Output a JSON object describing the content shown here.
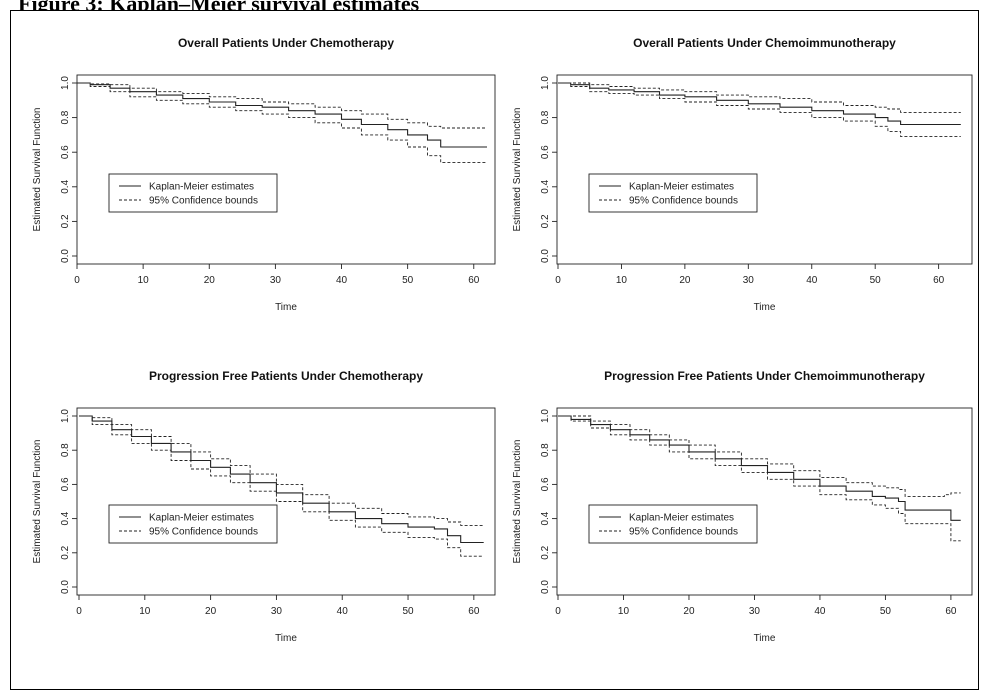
{
  "figure": {
    "heading_text": "Figure 3: Kaplan–Meier survival estimates"
  },
  "chart_data": [
    {
      "type": "line",
      "title": "Overall Patients Under Chemotherapy",
      "xlabel": "Time",
      "ylabel": "Estimated Survival Function",
      "xlim": [
        0,
        62
      ],
      "ylim": [
        0,
        1
      ],
      "xticks": [
        "0",
        "10",
        "20",
        "30",
        "40",
        "50",
        "60"
      ],
      "yticks": [
        "0.0",
        "0.2",
        "0.4",
        "0.6",
        "0.8",
        "1.0"
      ],
      "legend_position": "bottom-left",
      "series": [
        {
          "name": "Kaplan-Meier estimates",
          "style": "solid",
          "x": [
            0,
            2,
            5,
            8,
            12,
            16,
            20,
            24,
            28,
            32,
            36,
            40,
            43,
            47,
            50,
            53,
            55,
            62
          ],
          "y": [
            1.0,
            0.99,
            0.97,
            0.95,
            0.93,
            0.91,
            0.89,
            0.87,
            0.86,
            0.84,
            0.82,
            0.79,
            0.76,
            0.73,
            0.7,
            0.67,
            0.63,
            0.63
          ]
        },
        {
          "name": "95% Confidence bounds",
          "style": "dashed",
          "x": [
            0,
            2,
            5,
            8,
            12,
            16,
            20,
            24,
            28,
            32,
            36,
            40,
            43,
            47,
            50,
            53,
            55,
            62
          ],
          "y": [
            1.0,
            0.995,
            0.99,
            0.97,
            0.95,
            0.94,
            0.92,
            0.91,
            0.89,
            0.88,
            0.86,
            0.84,
            0.82,
            0.79,
            0.77,
            0.75,
            0.74,
            0.74
          ]
        },
        {
          "name": "",
          "style": "dashed",
          "x": [
            0,
            2,
            5,
            8,
            12,
            16,
            20,
            24,
            28,
            32,
            36,
            40,
            43,
            47,
            50,
            53,
            55,
            62
          ],
          "y": [
            1.0,
            0.98,
            0.95,
            0.92,
            0.9,
            0.88,
            0.86,
            0.84,
            0.82,
            0.8,
            0.77,
            0.74,
            0.7,
            0.67,
            0.63,
            0.58,
            0.54,
            0.54
          ]
        }
      ]
    },
    {
      "type": "line",
      "title": "Overall Patients Under Chemoimmunotherapy",
      "xlabel": "Time",
      "ylabel": "Estimated Survival Function",
      "xlim": [
        0,
        64
      ],
      "ylim": [
        0,
        1
      ],
      "xticks": [
        "0",
        "10",
        "20",
        "30",
        "40",
        "50",
        "60"
      ],
      "yticks": [
        "0.0",
        "0.2",
        "0.4",
        "0.6",
        "0.8",
        "1.0"
      ],
      "legend_position": "bottom-left",
      "series": [
        {
          "name": "Kaplan-Meier estimates",
          "style": "solid",
          "x": [
            0,
            2,
            5,
            8,
            12,
            16,
            20,
            25,
            30,
            35,
            40,
            45,
            50,
            52,
            54,
            63.5
          ],
          "y": [
            1.0,
            0.99,
            0.97,
            0.96,
            0.95,
            0.93,
            0.92,
            0.9,
            0.88,
            0.86,
            0.84,
            0.82,
            0.8,
            0.78,
            0.76,
            0.76
          ]
        },
        {
          "name": "95% Confidence bounds",
          "style": "dashed",
          "x": [
            0,
            2,
            5,
            8,
            12,
            16,
            20,
            25,
            30,
            35,
            40,
            45,
            50,
            52,
            54,
            63.5
          ],
          "y": [
            1.0,
            1.0,
            0.99,
            0.98,
            0.97,
            0.96,
            0.95,
            0.93,
            0.92,
            0.91,
            0.89,
            0.87,
            0.86,
            0.85,
            0.83,
            0.83
          ]
        },
        {
          "name": "",
          "style": "dashed",
          "x": [
            0,
            2,
            5,
            8,
            12,
            16,
            20,
            25,
            30,
            35,
            40,
            45,
            50,
            52,
            54,
            63.5
          ],
          "y": [
            1.0,
            0.98,
            0.95,
            0.94,
            0.93,
            0.91,
            0.89,
            0.87,
            0.85,
            0.83,
            0.8,
            0.78,
            0.75,
            0.72,
            0.69,
            0.69
          ]
        }
      ]
    },
    {
      "type": "line",
      "title": "Progression Free Patients Under Chemotherapy",
      "xlabel": "Time",
      "ylabel": "Estimated Survival Function",
      "xlim": [
        0,
        62
      ],
      "ylim": [
        0,
        1
      ],
      "xticks": [
        "0",
        "10",
        "20",
        "30",
        "40",
        "50",
        "60"
      ],
      "yticks": [
        "0.0",
        "0.2",
        "0.4",
        "0.6",
        "0.8",
        "1.0"
      ],
      "legend_position": "bottom-left",
      "series": [
        {
          "name": "Kaplan-Meier estimates",
          "style": "solid",
          "x": [
            0,
            2,
            5,
            8,
            11,
            14,
            17,
            20,
            23,
            26,
            30,
            34,
            38,
            42,
            46,
            50,
            54,
            56,
            58,
            61.5
          ],
          "y": [
            1.0,
            0.97,
            0.92,
            0.88,
            0.84,
            0.79,
            0.74,
            0.7,
            0.66,
            0.61,
            0.55,
            0.49,
            0.44,
            0.4,
            0.37,
            0.35,
            0.34,
            0.3,
            0.26,
            0.26
          ]
        },
        {
          "name": "95% Confidence bounds",
          "style": "dashed",
          "x": [
            0,
            2,
            5,
            8,
            11,
            14,
            17,
            20,
            23,
            26,
            30,
            34,
            38,
            42,
            46,
            50,
            54,
            56,
            58,
            61.5
          ],
          "y": [
            1.0,
            0.99,
            0.95,
            0.92,
            0.88,
            0.84,
            0.79,
            0.75,
            0.71,
            0.66,
            0.6,
            0.54,
            0.49,
            0.46,
            0.43,
            0.41,
            0.4,
            0.38,
            0.36,
            0.36
          ]
        },
        {
          "name": "",
          "style": "dashed",
          "x": [
            0,
            2,
            5,
            8,
            11,
            14,
            17,
            20,
            23,
            26,
            30,
            34,
            38,
            42,
            46,
            50,
            54,
            56,
            58,
            61.5
          ],
          "y": [
            1.0,
            0.95,
            0.89,
            0.84,
            0.8,
            0.74,
            0.69,
            0.65,
            0.61,
            0.56,
            0.5,
            0.44,
            0.39,
            0.35,
            0.32,
            0.29,
            0.28,
            0.23,
            0.18,
            0.18
          ]
        }
      ]
    },
    {
      "type": "line",
      "title": "Progression Free Patients Under Chemoimmunotherapy",
      "xlabel": "Time",
      "ylabel": "Estimated Survival Function",
      "xlim": [
        0,
        62
      ],
      "ylim": [
        0,
        1
      ],
      "xticks": [
        "0",
        "10",
        "20",
        "30",
        "40",
        "50",
        "60"
      ],
      "yticks": [
        "0.0",
        "0.2",
        "0.4",
        "0.6",
        "0.8",
        "1.0"
      ],
      "legend_position": "bottom-left",
      "series": [
        {
          "name": "Kaplan-Meier estimates",
          "style": "solid",
          "x": [
            0,
            2,
            5,
            8,
            11,
            14,
            17,
            20,
            24,
            28,
            32,
            36,
            40,
            44,
            48,
            50,
            52,
            53,
            56,
            59,
            60,
            61.5
          ],
          "y": [
            1.0,
            0.98,
            0.95,
            0.92,
            0.89,
            0.86,
            0.83,
            0.79,
            0.75,
            0.71,
            0.67,
            0.63,
            0.59,
            0.56,
            0.53,
            0.52,
            0.5,
            0.45,
            0.45,
            0.45,
            0.39,
            0.39
          ]
        },
        {
          "name": "95% Confidence bounds",
          "style": "dashed",
          "x": [
            0,
            2,
            5,
            8,
            11,
            14,
            17,
            20,
            24,
            28,
            32,
            36,
            40,
            44,
            48,
            50,
            52,
            53,
            56,
            59,
            60,
            61.5
          ],
          "y": [
            1.0,
            1.0,
            0.97,
            0.95,
            0.92,
            0.89,
            0.86,
            0.83,
            0.79,
            0.75,
            0.72,
            0.68,
            0.64,
            0.61,
            0.59,
            0.58,
            0.57,
            0.53,
            0.53,
            0.54,
            0.55,
            0.55
          ]
        },
        {
          "name": "",
          "style": "dashed",
          "x": [
            0,
            2,
            5,
            8,
            11,
            14,
            17,
            20,
            24,
            28,
            32,
            36,
            40,
            44,
            48,
            50,
            52,
            53,
            56,
            59,
            60,
            61.5
          ],
          "y": [
            1.0,
            0.97,
            0.93,
            0.89,
            0.86,
            0.83,
            0.79,
            0.75,
            0.71,
            0.67,
            0.63,
            0.59,
            0.54,
            0.51,
            0.48,
            0.46,
            0.43,
            0.37,
            0.37,
            0.37,
            0.27,
            0.27
          ]
        }
      ]
    }
  ]
}
